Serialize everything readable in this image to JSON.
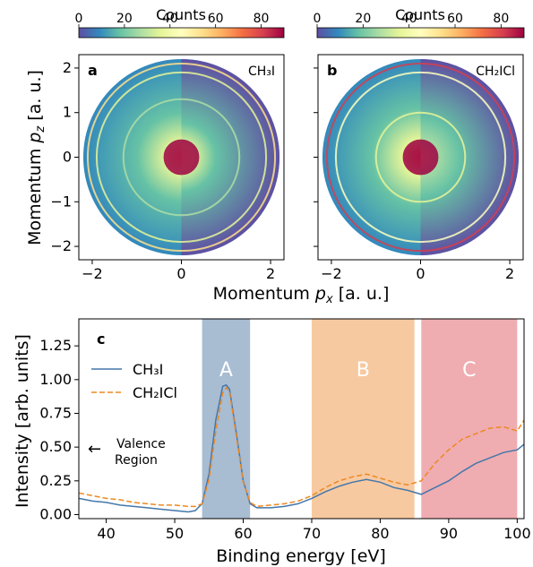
{
  "panels": {
    "a": {
      "label": "a",
      "molecule": "CH₃I"
    },
    "b": {
      "label": "b",
      "molecule": "CH₂ICl"
    }
  },
  "colorbar": {
    "title": "Counts",
    "ticks": [
      "0",
      "20",
      "40",
      "60",
      "80"
    ],
    "range": [
      0,
      90
    ],
    "colormap": [
      "#5e4fa2",
      "#3288bd",
      "#66c2a5",
      "#abdda4",
      "#e6f598",
      "#ffffbf",
      "#fee08b",
      "#fdae61",
      "#f46d43",
      "#d53e4f",
      "#9e0142"
    ]
  },
  "chart_data": [
    {
      "type": "heatmap",
      "panel": "a",
      "molecule": "CH₃I",
      "xlabel": "Momentum p_x [a. u.]",
      "ylabel": "Momentum p_z [a. u.]",
      "xlim": [
        -2.3,
        2.3
      ],
      "ylim": [
        -2.3,
        2.3
      ],
      "xticks": [
        "−2",
        "0",
        "2"
      ],
      "yticks": [
        "−2",
        "−1",
        "0",
        "1",
        "2"
      ],
      "outer_radius": 2.2,
      "rings": [
        {
          "r": 2.1,
          "counts": 55
        },
        {
          "r": 1.9,
          "counts": 35
        },
        {
          "r": 1.3,
          "counts": 30
        },
        {
          "r": 0.2,
          "counts": 90
        }
      ]
    },
    {
      "type": "heatmap",
      "panel": "b",
      "molecule": "CH₂ICl",
      "xlabel": "Momentum p_x [a. u.]",
      "ylabel": "",
      "xlim": [
        -2.3,
        2.3
      ],
      "ylim": [
        -2.3,
        2.3
      ],
      "xticks": [
        "−2",
        "0",
        "2"
      ],
      "yticks": [],
      "outer_radius": 2.2,
      "rings": [
        {
          "r": 2.1,
          "counts": 80
        },
        {
          "r": 1.9,
          "counts": 45
        },
        {
          "r": 1.0,
          "counts": 40
        },
        {
          "r": 0.2,
          "counts": 90
        }
      ]
    },
    {
      "type": "line",
      "panel": "c",
      "xlabel": "Binding energy [eV]",
      "ylabel": "Intensity [arb. units]",
      "xlim": [
        36,
        101
      ],
      "ylim": [
        -0.03,
        1.45
      ],
      "xticks": [
        "40",
        "50",
        "60",
        "70",
        "80",
        "90",
        "100"
      ],
      "yticks": [
        "0.00",
        "0.25",
        "0.50",
        "0.75",
        "1.00",
        "1.25"
      ],
      "x": [
        36,
        38,
        40,
        42,
        44,
        46,
        48,
        50,
        52,
        53,
        54,
        55,
        56,
        57,
        57.5,
        58,
        59,
        60,
        61,
        62,
        64,
        66,
        68,
        70,
        72,
        74,
        76,
        78,
        80,
        82,
        84,
        86,
        88,
        90,
        92,
        94,
        96,
        98,
        100,
        101
      ],
      "series": [
        {
          "name": "CH₃I",
          "color": "#4477aa",
          "style": "solid",
          "values": [
            0.12,
            0.1,
            0.09,
            0.07,
            0.06,
            0.05,
            0.04,
            0.03,
            0.02,
            0.03,
            0.08,
            0.3,
            0.7,
            0.95,
            0.96,
            0.93,
            0.6,
            0.25,
            0.08,
            0.05,
            0.05,
            0.06,
            0.08,
            0.12,
            0.17,
            0.21,
            0.24,
            0.26,
            0.24,
            0.2,
            0.18,
            0.15,
            0.2,
            0.25,
            0.32,
            0.38,
            0.42,
            0.46,
            0.48,
            0.52
          ]
        },
        {
          "name": "CH₂ICl",
          "color": "#ee8822",
          "style": "dashed",
          "values": [
            0.16,
            0.14,
            0.12,
            0.11,
            0.09,
            0.08,
            0.07,
            0.07,
            0.06,
            0.06,
            0.08,
            0.26,
            0.62,
            0.9,
            0.94,
            0.91,
            0.58,
            0.24,
            0.09,
            0.06,
            0.07,
            0.08,
            0.1,
            0.14,
            0.2,
            0.25,
            0.28,
            0.3,
            0.27,
            0.24,
            0.22,
            0.25,
            0.38,
            0.48,
            0.56,
            0.6,
            0.64,
            0.65,
            0.62,
            0.7
          ]
        }
      ],
      "regions": [
        {
          "label": "A",
          "from": 54,
          "to": 61,
          "color": "#a8bcd2"
        },
        {
          "label": "B",
          "from": 70,
          "to": 85,
          "color": "#f7c9a0"
        },
        {
          "label": "C",
          "from": 86,
          "to": 100,
          "color": "#efadb1"
        }
      ],
      "annotation": {
        "line1": "Valence",
        "line2": "Region",
        "arrow": "←"
      },
      "panel_label": "c",
      "legend": "upper-left"
    }
  ]
}
